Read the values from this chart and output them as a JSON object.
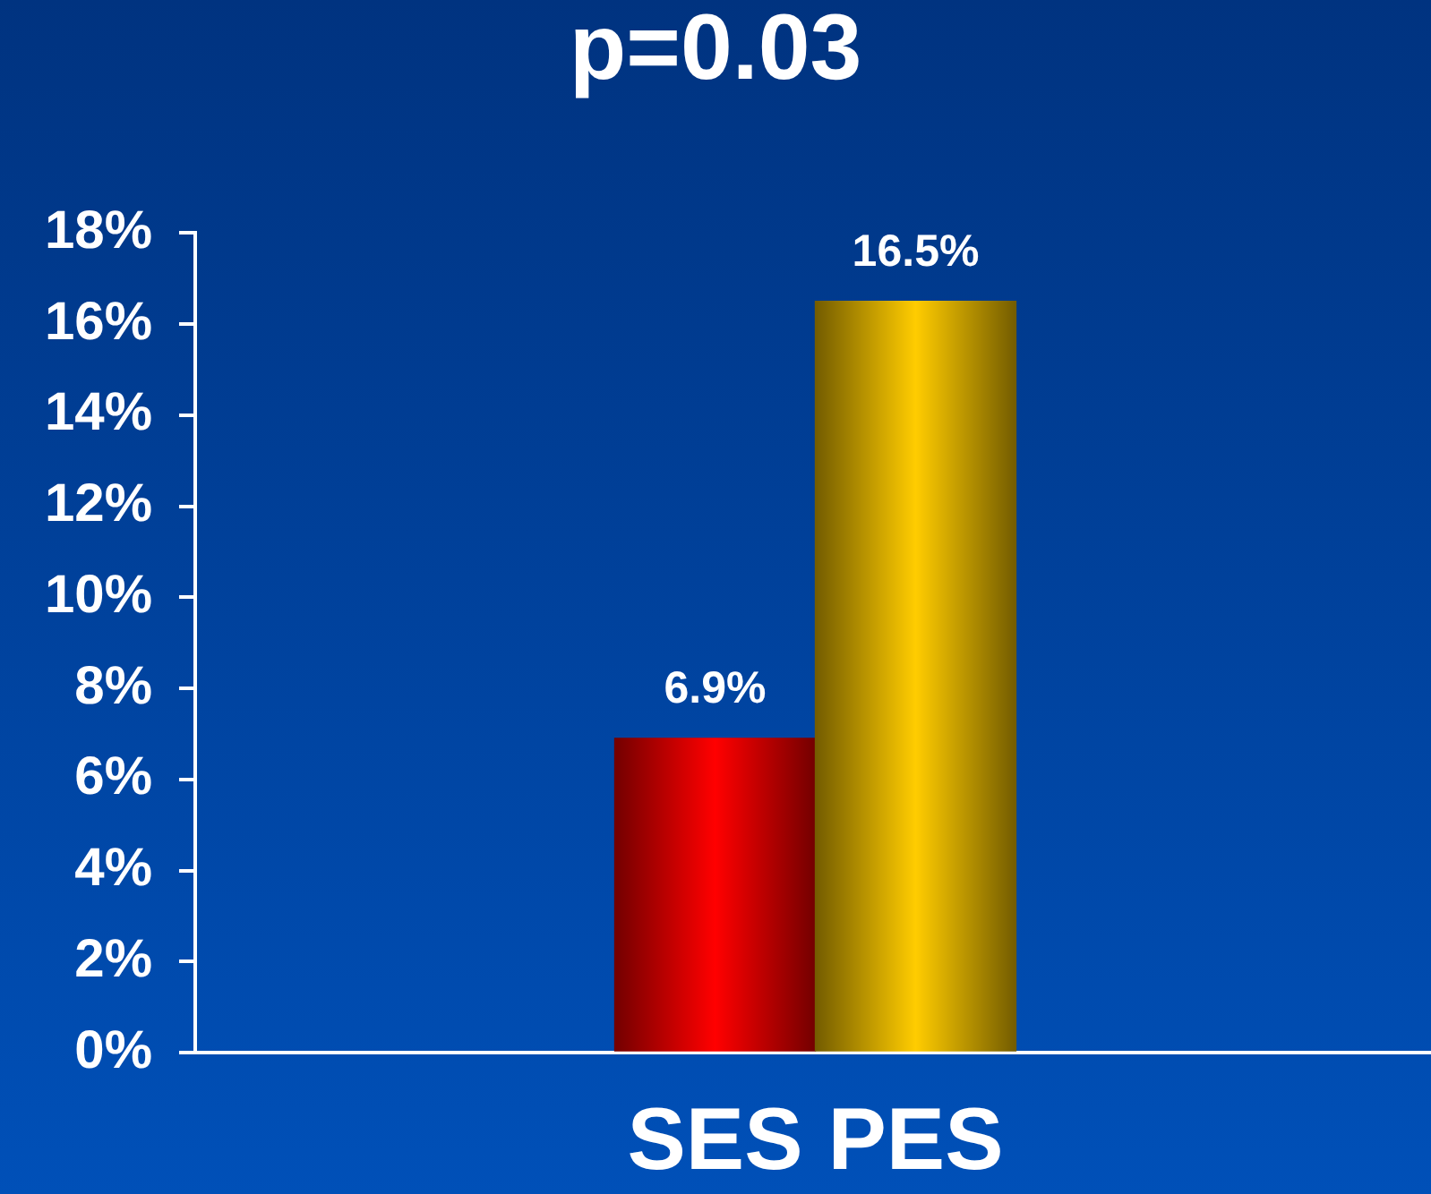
{
  "chart_data": {
    "type": "bar",
    "title": "p=0.03",
    "categories": [
      "SES",
      "PES"
    ],
    "values": [
      6.9,
      16.5
    ],
    "colors": [
      "#ff0000",
      "#ffcc00"
    ],
    "ylim": [
      0,
      18
    ],
    "yticks": [
      {
        "value": 0,
        "label": "0%"
      },
      {
        "value": 2,
        "label": "2%"
      },
      {
        "value": 4,
        "label": "4%"
      },
      {
        "value": 6,
        "label": "6%"
      },
      {
        "value": 8,
        "label": "8%"
      },
      {
        "value": 10,
        "label": "10%"
      },
      {
        "value": 12,
        "label": "12%"
      },
      {
        "value": 14,
        "label": "14%"
      },
      {
        "value": 16,
        "label": "16%"
      },
      {
        "value": 18,
        "label": "18%"
      }
    ],
    "value_labels": [
      "6.9%",
      "16.5%"
    ]
  }
}
